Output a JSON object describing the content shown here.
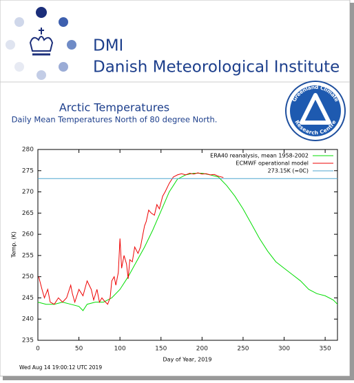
{
  "header": {
    "acronym": "DMI",
    "name": "Danish Meteorological Institute"
  },
  "logo": {
    "top": "Greenland Climate",
    "bottom": "Research Centre"
  },
  "footer": "Wed Aug 14 19:00:12 UTC 2019",
  "chart_data": {
    "type": "line",
    "title": "Arctic Temperatures",
    "subtitle": "Daily Mean Temperatures North of 80 degree North.",
    "xlabel": "Day of Year, 2019",
    "ylabel": "Temp. (K)",
    "xlim": [
      0,
      365
    ],
    "ylim": [
      235,
      280
    ],
    "xticks": [
      0,
      50,
      100,
      150,
      200,
      250,
      300,
      350
    ],
    "yticks": [
      235,
      240,
      245,
      250,
      255,
      260,
      265,
      270,
      275,
      280
    ],
    "grid": false,
    "legend": "top-right",
    "series": [
      {
        "name": "ERA40 reanalysis, mean 1958-2002",
        "color": "#00dd00",
        "x": [
          0,
          10,
          20,
          30,
          40,
          50,
          55,
          60,
          70,
          80,
          90,
          100,
          110,
          120,
          130,
          140,
          150,
          160,
          170,
          180,
          190,
          200,
          210,
          220,
          230,
          240,
          250,
          260,
          270,
          280,
          290,
          300,
          310,
          320,
          330,
          340,
          350,
          360,
          365
        ],
        "values": [
          244,
          243.5,
          243.5,
          244,
          243.5,
          243,
          242,
          243.5,
          244,
          244,
          245,
          247,
          250,
          253.5,
          257,
          261,
          265.5,
          270,
          273,
          274,
          274.4,
          274.4,
          274,
          273.5,
          271.5,
          269,
          266,
          262.5,
          259,
          256,
          253.5,
          252,
          250.5,
          249,
          247,
          246,
          245.5,
          244.5,
          243.5
        ]
      },
      {
        "name": "ECMWF operational model",
        "color": "#ee0000",
        "x": [
          1,
          5,
          8,
          12,
          15,
          20,
          25,
          30,
          35,
          40,
          42,
          45,
          50,
          55,
          60,
          65,
          68,
          72,
          75,
          78,
          80,
          85,
          88,
          90,
          93,
          95,
          98,
          100,
          102,
          105,
          108,
          110,
          112,
          115,
          118,
          122,
          125,
          128,
          130,
          132,
          135,
          138,
          142,
          145,
          148,
          152,
          155,
          160,
          165,
          170,
          175,
          180,
          185,
          190,
          195,
          200,
          205,
          210,
          215,
          220,
          226
        ],
        "values": [
          250,
          247,
          245,
          247,
          244,
          243.5,
          245,
          244,
          245,
          248,
          246,
          244,
          247,
          245.5,
          249,
          247,
          244.5,
          247,
          244,
          245,
          244.5,
          243.5,
          245,
          249,
          250,
          248,
          251,
          259,
          252,
          255,
          253,
          249.5,
          254,
          253.5,
          257,
          255.5,
          257,
          260,
          262,
          263,
          265.7,
          265,
          264.5,
          267,
          266,
          269,
          270,
          272,
          273.5,
          274,
          274.3,
          274,
          274.4,
          274.2,
          274.5,
          274.2,
          274.3,
          274,
          274.1,
          273.7,
          273.4
        ]
      },
      {
        "name": "273.15K (=0C)",
        "color": "#4ea6cf",
        "x": [
          0,
          365
        ],
        "values": [
          273.15,
          273.15
        ]
      }
    ]
  }
}
